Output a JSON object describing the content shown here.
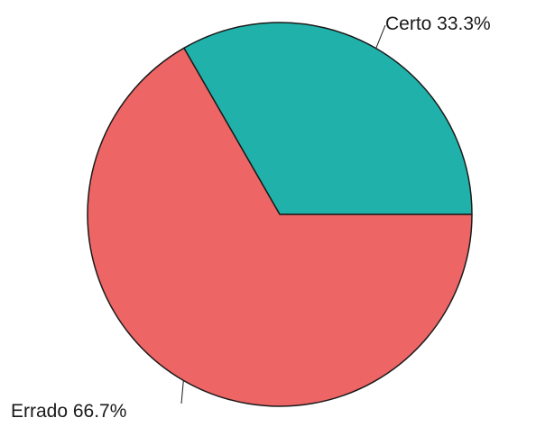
{
  "chart_data": {
    "type": "pie",
    "title": "",
    "slices": [
      {
        "label": "Certo 33.3%",
        "name": "Certo",
        "value": 33.3,
        "color": "#20b2aa"
      },
      {
        "label": "Errado 66.7%",
        "name": "Errado",
        "value": 66.7,
        "color": "#ee6566"
      }
    ],
    "start_angle_deg": 0,
    "direction": "counterclockwise",
    "outline_color": "#1a1a1a"
  }
}
